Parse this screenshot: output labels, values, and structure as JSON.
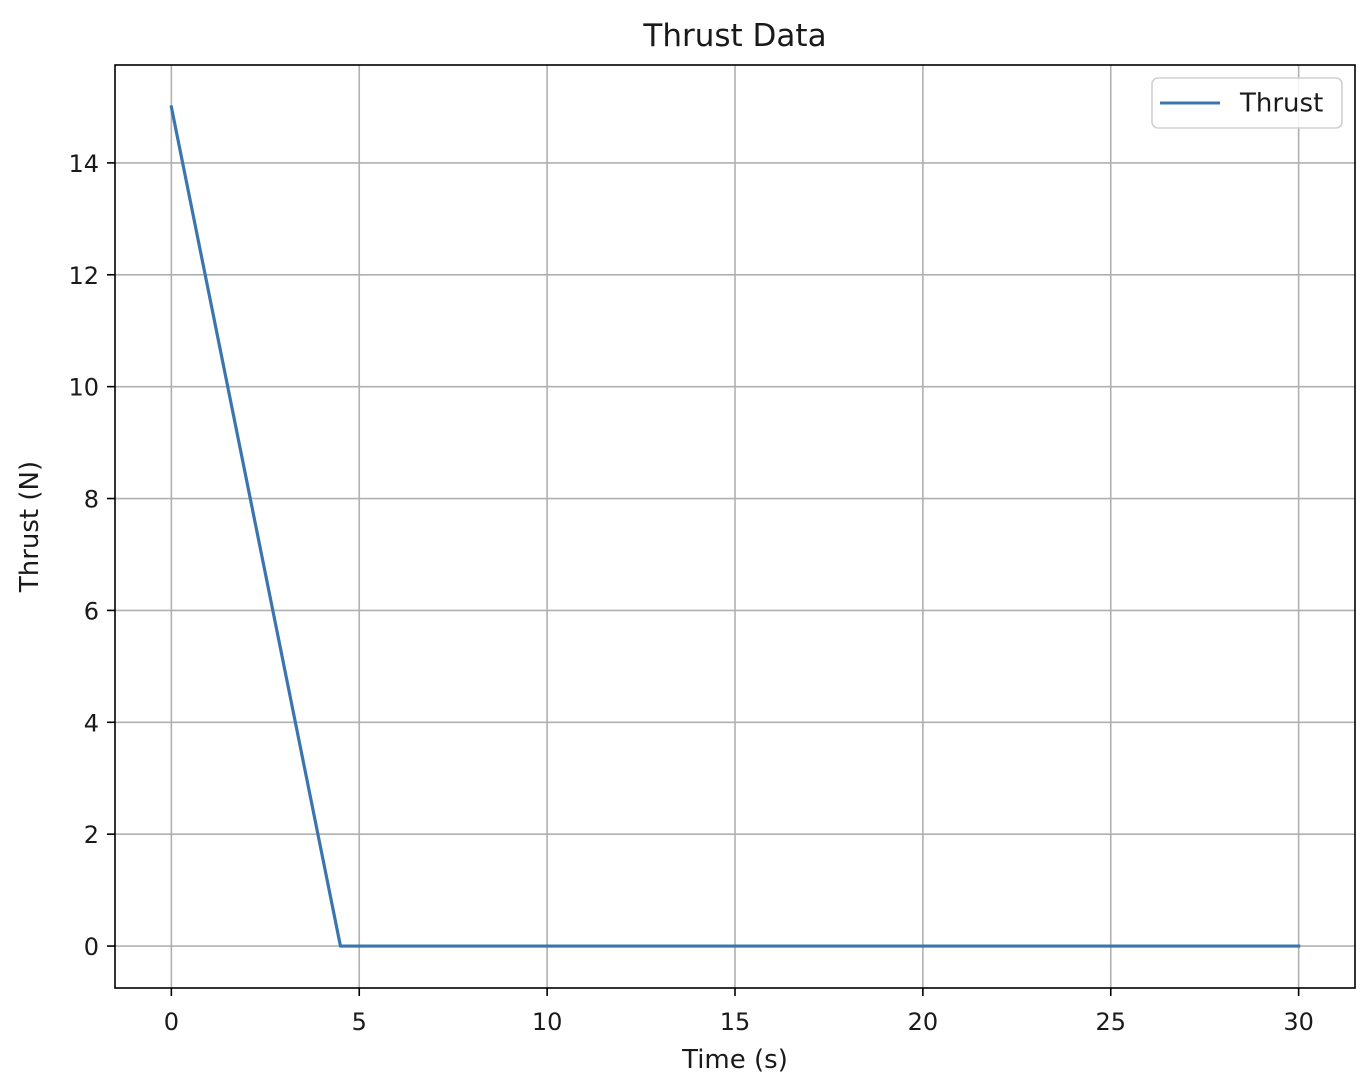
{
  "chart_data": {
    "type": "line",
    "title": "Thrust Data",
    "xlabel": "Time (s)",
    "ylabel": "Thrust (N)",
    "xlim": [
      -1.5,
      31.5
    ],
    "ylim": [
      -0.75,
      15.75
    ],
    "xticks": [
      0,
      5,
      10,
      15,
      20,
      25,
      30
    ],
    "xtick_labels": [
      "0",
      "5",
      "10",
      "15",
      "20",
      "25",
      "30"
    ],
    "yticks": [
      0,
      2,
      4,
      6,
      8,
      10,
      12,
      14
    ],
    "ytick_labels": [
      "0",
      "2",
      "4",
      "6",
      "8",
      "10",
      "12",
      "14"
    ],
    "grid": true,
    "legend": {
      "placement": "top-right",
      "entries": [
        "Thrust"
      ]
    },
    "series": [
      {
        "name": "Thrust",
        "color": "#3b75af",
        "x": [
          0,
          4.5,
          30
        ],
        "y": [
          15,
          0,
          0
        ]
      }
    ]
  }
}
